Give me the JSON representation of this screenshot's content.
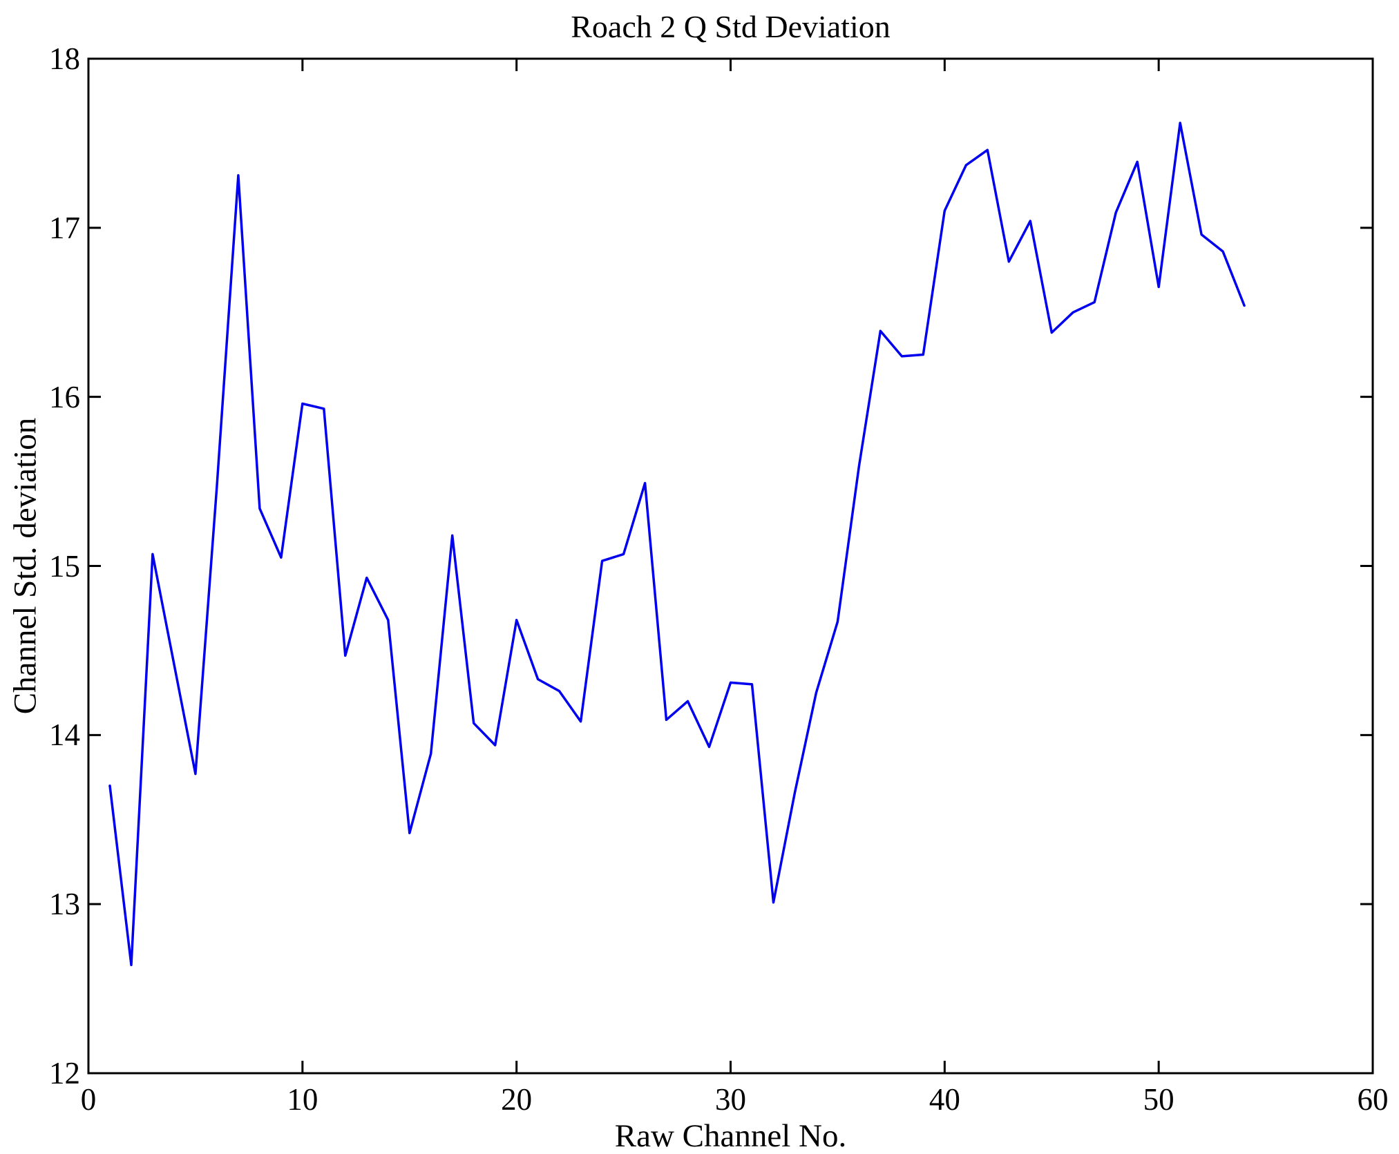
{
  "figure": {
    "background": "#ffffff",
    "axis_color": "#000000",
    "text_color": "#000000"
  },
  "chart_data": {
    "type": "line",
    "title": "Roach 2 Q Std Deviation",
    "xlabel": "Raw Channel No.",
    "ylabel": "Channel Std. deviation",
    "xlim": [
      0,
      60
    ],
    "ylim": [
      12,
      18
    ],
    "x_ticks": [
      0,
      10,
      20,
      30,
      40,
      50,
      60
    ],
    "y_ticks": [
      12,
      13,
      14,
      15,
      16,
      17,
      18
    ],
    "grid": false,
    "legend": "none",
    "line_color": "#0000ee",
    "series": [
      {
        "name": "channel-std-deviation",
        "x": [
          1,
          2,
          3,
          4,
          5,
          6,
          7,
          8,
          9,
          10,
          11,
          12,
          13,
          14,
          15,
          16,
          17,
          18,
          19,
          20,
          21,
          22,
          23,
          24,
          25,
          26,
          27,
          28,
          29,
          30,
          31,
          32,
          33,
          34,
          35,
          36,
          37,
          38,
          39,
          40,
          41,
          42,
          43,
          44,
          45,
          46,
          47,
          48,
          49,
          50,
          51,
          52,
          53,
          54
        ],
        "y": [
          13.7,
          12.64,
          15.07,
          14.42,
          13.77,
          15.47,
          17.31,
          15.34,
          15.05,
          15.96,
          15.93,
          14.47,
          14.93,
          14.68,
          13.42,
          13.89,
          15.18,
          14.07,
          13.94,
          14.68,
          14.33,
          14.26,
          14.08,
          15.03,
          15.07,
          15.49,
          14.09,
          14.2,
          13.93,
          14.31,
          14.3,
          13.01,
          13.66,
          14.25,
          14.67,
          15.59,
          16.39,
          16.24,
          16.25,
          17.1,
          17.37,
          17.46,
          16.8,
          17.04,
          16.38,
          16.5,
          16.56,
          17.09,
          17.39,
          16.65,
          17.62,
          16.96,
          16.86,
          16.54
        ]
      }
    ]
  }
}
